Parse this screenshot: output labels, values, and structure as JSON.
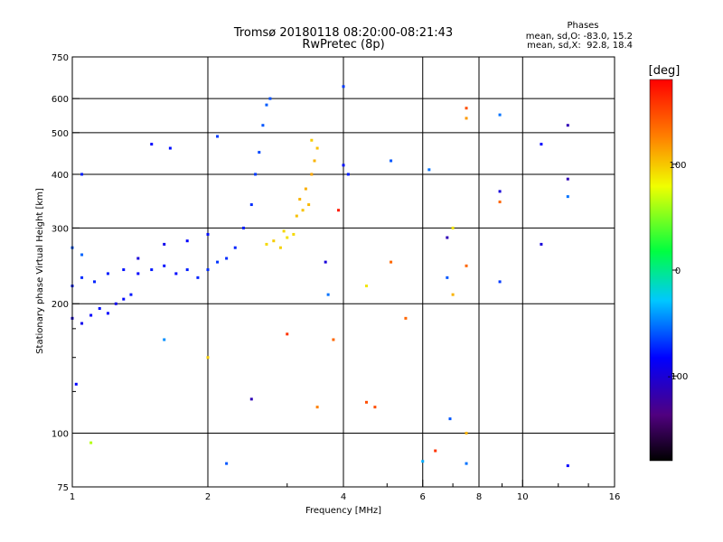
{
  "chart_data": {
    "type": "scatter",
    "title": "Tromsø 20180118 08:20:00-08:21:43",
    "subtitle": "RwPretec (8p)",
    "xlabel": "Frequency [MHz]",
    "ylabel": "Stationary phase Virtual Height [km]",
    "x_scale": "log",
    "y_scale": "log",
    "xlim": [
      1,
      16
    ],
    "ylim": [
      75,
      750
    ],
    "x_ticks": [
      1,
      2,
      4,
      6,
      8,
      10,
      16
    ],
    "x_tick_labels": [
      "1",
      "2",
      "4",
      "6",
      "8",
      "10",
      "16"
    ],
    "x_minor_ticks": [
      3,
      5,
      7,
      9,
      12,
      14
    ],
    "y_ticks": [
      75,
      100,
      200,
      300,
      400,
      500,
      600,
      750
    ],
    "y_tick_labels": [
      "75",
      "100",
      "200",
      "300",
      "400",
      "500",
      "600",
      "750"
    ],
    "y_minor_ticks": [
      125,
      150,
      175
    ],
    "grid": true,
    "phase_box": {
      "heading": "Phases",
      "line_o": "mean, sd,O: -83.0, 15.2",
      "line_x": "mean, sd,X:  92.8, 18.4"
    },
    "colorbar": {
      "label": "[deg]",
      "range": [
        -180,
        180
      ],
      "ticks": [
        100,
        0,
        -100
      ],
      "tick_labels": [
        "100",
        "0",
        "-100"
      ]
    },
    "series": [
      {
        "trace": "O-mode",
        "color_by": "phase_deg",
        "points": [
          {
            "f": 1.0,
            "h": 185,
            "p": -110
          },
          {
            "f": 1.05,
            "h": 180,
            "p": -105
          },
          {
            "f": 1.1,
            "h": 188,
            "p": -100
          },
          {
            "f": 1.15,
            "h": 195,
            "p": -95
          },
          {
            "f": 1.2,
            "h": 190,
            "p": -100
          },
          {
            "f": 1.25,
            "h": 200,
            "p": -105
          },
          {
            "f": 1.3,
            "h": 205,
            "p": -98
          },
          {
            "f": 1.35,
            "h": 210,
            "p": -92
          },
          {
            "f": 1.0,
            "h": 220,
            "p": -90
          },
          {
            "f": 1.05,
            "h": 230,
            "p": -85
          },
          {
            "f": 1.12,
            "h": 225,
            "p": -88
          },
          {
            "f": 1.2,
            "h": 235,
            "p": -90
          },
          {
            "f": 1.3,
            "h": 240,
            "p": -95
          },
          {
            "f": 1.4,
            "h": 235,
            "p": -100
          },
          {
            "f": 1.5,
            "h": 240,
            "p": -92
          },
          {
            "f": 1.6,
            "h": 245,
            "p": -95
          },
          {
            "f": 1.7,
            "h": 235,
            "p": -98
          },
          {
            "f": 1.8,
            "h": 240,
            "p": -90
          },
          {
            "f": 1.9,
            "h": 230,
            "p": -88
          },
          {
            "f": 2.0,
            "h": 240,
            "p": -85
          },
          {
            "f": 2.1,
            "h": 250,
            "p": -82
          },
          {
            "f": 2.2,
            "h": 255,
            "p": -85
          },
          {
            "f": 2.3,
            "h": 270,
            "p": -88
          },
          {
            "f": 2.4,
            "h": 300,
            "p": -90
          },
          {
            "f": 2.5,
            "h": 340,
            "p": -85
          },
          {
            "f": 2.55,
            "h": 400,
            "p": -80
          },
          {
            "f": 2.6,
            "h": 450,
            "p": -75
          },
          {
            "f": 2.65,
            "h": 520,
            "p": -70
          },
          {
            "f": 2.7,
            "h": 580,
            "p": -68
          },
          {
            "f": 2.75,
            "h": 600,
            "p": -72
          },
          {
            "f": 1.0,
            "h": 270,
            "p": -70
          },
          {
            "f": 1.05,
            "h": 260,
            "p": -65
          },
          {
            "f": 1.4,
            "h": 255,
            "p": -110
          },
          {
            "f": 1.6,
            "h": 275,
            "p": -105
          },
          {
            "f": 1.8,
            "h": 280,
            "p": -100
          },
          {
            "f": 2.0,
            "h": 290,
            "p": -95
          },
          {
            "f": 1.5,
            "h": 470,
            "p": -100
          },
          {
            "f": 1.65,
            "h": 460,
            "p": -95
          },
          {
            "f": 2.1,
            "h": 490,
            "p": -80
          }
        ]
      },
      {
        "trace": "X-mode",
        "color_by": "phase_deg",
        "points": [
          {
            "f": 2.7,
            "h": 275,
            "p": 95
          },
          {
            "f": 2.8,
            "h": 280,
            "p": 100
          },
          {
            "f": 2.9,
            "h": 270,
            "p": 98
          },
          {
            "f": 3.0,
            "h": 285,
            "p": 92
          },
          {
            "f": 3.1,
            "h": 290,
            "p": 95
          },
          {
            "f": 3.15,
            "h": 320,
            "p": 105
          },
          {
            "f": 3.2,
            "h": 350,
            "p": 110
          },
          {
            "f": 3.3,
            "h": 370,
            "p": 112
          },
          {
            "f": 3.4,
            "h": 400,
            "p": 115
          },
          {
            "f": 3.45,
            "h": 430,
            "p": 110
          },
          {
            "f": 3.5,
            "h": 460,
            "p": 105
          },
          {
            "f": 3.4,
            "h": 480,
            "p": 100
          },
          {
            "f": 3.35,
            "h": 340,
            "p": 108
          },
          {
            "f": 3.25,
            "h": 330,
            "p": 104
          },
          {
            "f": 2.95,
            "h": 295,
            "p": 96
          }
        ]
      },
      {
        "trace": "scattered",
        "color_by": "phase_deg",
        "points": [
          {
            "f": 4.0,
            "h": 640,
            "p": -80
          },
          {
            "f": 4.0,
            "h": 420,
            "p": -95
          },
          {
            "f": 4.1,
            "h": 400,
            "p": -90
          },
          {
            "f": 5.1,
            "h": 430,
            "p": -70
          },
          {
            "f": 5.1,
            "h": 250,
            "p": 140
          },
          {
            "f": 4.5,
            "h": 220,
            "p": 90
          },
          {
            "f": 4.5,
            "h": 118,
            "p": 150
          },
          {
            "f": 4.7,
            "h": 115,
            "p": 150
          },
          {
            "f": 5.5,
            "h": 185,
            "p": 140
          },
          {
            "f": 6.2,
            "h": 410,
            "p": -60
          },
          {
            "f": 6.4,
            "h": 91,
            "p": 160
          },
          {
            "f": 6.8,
            "h": 285,
            "p": -120
          },
          {
            "f": 6.8,
            "h": 230,
            "p": -70
          },
          {
            "f": 7.0,
            "h": 210,
            "p": 110
          },
          {
            "f": 7.0,
            "h": 300,
            "p": 90
          },
          {
            "f": 7.5,
            "h": 570,
            "p": 150
          },
          {
            "f": 7.5,
            "h": 540,
            "p": 120
          },
          {
            "f": 7.5,
            "h": 245,
            "p": 140
          },
          {
            "f": 7.5,
            "h": 100,
            "p": 110
          },
          {
            "f": 7.5,
            "h": 85,
            "p": -60
          },
          {
            "f": 6.9,
            "h": 108,
            "p": -70
          },
          {
            "f": 6.0,
            "h": 86,
            "p": -40
          },
          {
            "f": 8.9,
            "h": 550,
            "p": -60
          },
          {
            "f": 8.9,
            "h": 345,
            "p": 140
          },
          {
            "f": 8.9,
            "h": 365,
            "p": -110
          },
          {
            "f": 8.9,
            "h": 225,
            "p": -80
          },
          {
            "f": 11.0,
            "h": 470,
            "p": -100
          },
          {
            "f": 11.0,
            "h": 275,
            "p": -110
          },
          {
            "f": 12.6,
            "h": 520,
            "p": -120
          },
          {
            "f": 12.6,
            "h": 390,
            "p": -120
          },
          {
            "f": 12.6,
            "h": 355,
            "p": -60
          },
          {
            "f": 12.6,
            "h": 84,
            "p": -100
          },
          {
            "f": 1.6,
            "h": 165,
            "p": -50
          },
          {
            "f": 2.0,
            "h": 150,
            "p": 100
          },
          {
            "f": 2.5,
            "h": 120,
            "p": -120
          },
          {
            "f": 2.2,
            "h": 85,
            "p": -70
          },
          {
            "f": 1.1,
            "h": 95,
            "p": 60
          },
          {
            "f": 3.0,
            "h": 170,
            "p": 160
          },
          {
            "f": 3.5,
            "h": 115,
            "p": 130
          },
          {
            "f": 3.7,
            "h": 210,
            "p": -60
          },
          {
            "f": 3.8,
            "h": 165,
            "p": 140
          },
          {
            "f": 1.02,
            "h": 130,
            "p": -100
          },
          {
            "f": 1.05,
            "h": 400,
            "p": -90
          },
          {
            "f": 3.65,
            "h": 250,
            "p": -110
          },
          {
            "f": 3.9,
            "h": 330,
            "p": 170
          }
        ]
      }
    ]
  }
}
